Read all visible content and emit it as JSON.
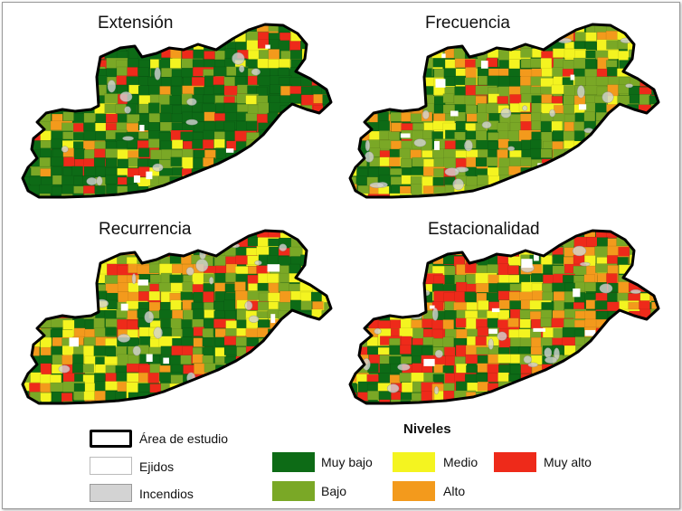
{
  "maps": [
    {
      "title": "Extensión",
      "seed": 11,
      "levels": [
        0.55,
        0.22,
        0.1,
        0.04,
        0.09
      ]
    },
    {
      "title": "Frecuencia",
      "seed": 23,
      "levels": [
        0.2,
        0.42,
        0.16,
        0.12,
        0.1
      ]
    },
    {
      "title": "Recurrencia",
      "seed": 37,
      "levels": [
        0.34,
        0.22,
        0.18,
        0.14,
        0.12
      ]
    },
    {
      "title": "Estacionalidad",
      "seed": 53,
      "levels": [
        0.22,
        0.18,
        0.14,
        0.18,
        0.28
      ]
    }
  ],
  "legend": {
    "area_estudio": "Área de estudio",
    "ejidos": "Ejidos",
    "incendios": "Incendios",
    "niveles_title": "Niveles",
    "muy_bajo": "Muy bajo",
    "bajo": "Bajo",
    "medio": "Medio",
    "alto": "Alto",
    "muy_alto": "Muy alto"
  },
  "colors": {
    "muy_bajo": "#0d6b16",
    "bajo": "#7aa826",
    "medio": "#f4f420",
    "alto": "#f39a1c",
    "muy_alto": "#ee2a1a",
    "ejidos": "#ffffff",
    "incendios": "#d3d3d3",
    "outline": "#000000"
  }
}
